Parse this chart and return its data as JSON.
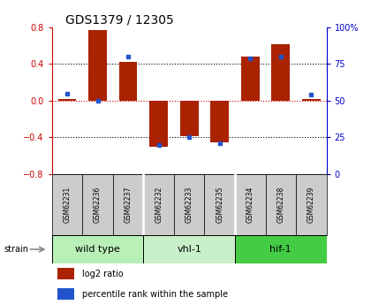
{
  "title": "GDS1379 / 12305",
  "samples": [
    "GSM62231",
    "GSM62236",
    "GSM62237",
    "GSM62232",
    "GSM62233",
    "GSM62235",
    "GSM62234",
    "GSM62238",
    "GSM62239"
  ],
  "log2_ratio": [
    0.02,
    0.77,
    0.42,
    -0.5,
    -0.39,
    -0.46,
    0.48,
    0.62,
    0.02
  ],
  "percentile_rank": [
    55,
    50,
    80,
    20,
    25,
    21,
    79,
    80,
    54
  ],
  "groups": [
    {
      "label": "wild type",
      "count": 3,
      "color": "#b8f0b8"
    },
    {
      "label": "vhl-1",
      "count": 3,
      "color": "#c8f0c8"
    },
    {
      "label": "hif-1",
      "count": 3,
      "color": "#44cc44"
    }
  ],
  "ylim_left": [
    -0.8,
    0.8
  ],
  "yticks_left": [
    -0.8,
    -0.4,
    0.0,
    0.4,
    0.8
  ],
  "ylim_right": [
    0,
    100
  ],
  "yticks_right": [
    0,
    25,
    50,
    75,
    100
  ],
  "bar_color": "#aa2200",
  "dot_color": "#2255cc",
  "hline_color": "#cc0000",
  "grid_color": "#000000",
  "sample_box_color": "#cccccc",
  "legend_log2": "log2 ratio",
  "legend_pct": "percentile rank within the sample",
  "strain_label": "strain",
  "left_axis_color": "#cc0000",
  "right_axis_color": "#0000cc"
}
